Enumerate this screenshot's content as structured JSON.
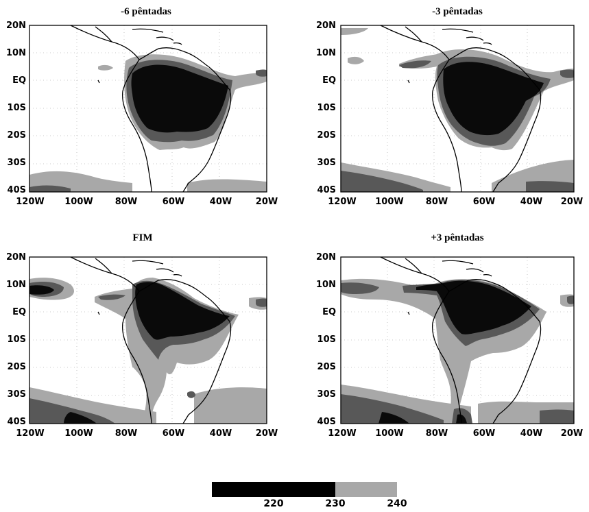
{
  "panels": [
    {
      "title": "-6 pêntadas"
    },
    {
      "title": "-3 pêntadas"
    },
    {
      "title": "FIM"
    },
    {
      "title": "+3 pêntadas"
    }
  ],
  "lat_labels": [
    "20N",
    "10N",
    "EQ",
    "10S",
    "20S",
    "30S",
    "40S"
  ],
  "lon_labels": [
    "120W",
    "100W",
    "80W",
    "60W",
    "40W",
    "20W"
  ],
  "legend": {
    "ticks": [
      "220",
      "230",
      "240"
    ],
    "colors": {
      "below_230": "#000000",
      "230_240": "#a8a8a8",
      "above_240": "#ffffff"
    }
  },
  "colors": {
    "dark": "#0a0a0a",
    "mid": "#585858",
    "light": "#a8a8a8"
  }
}
